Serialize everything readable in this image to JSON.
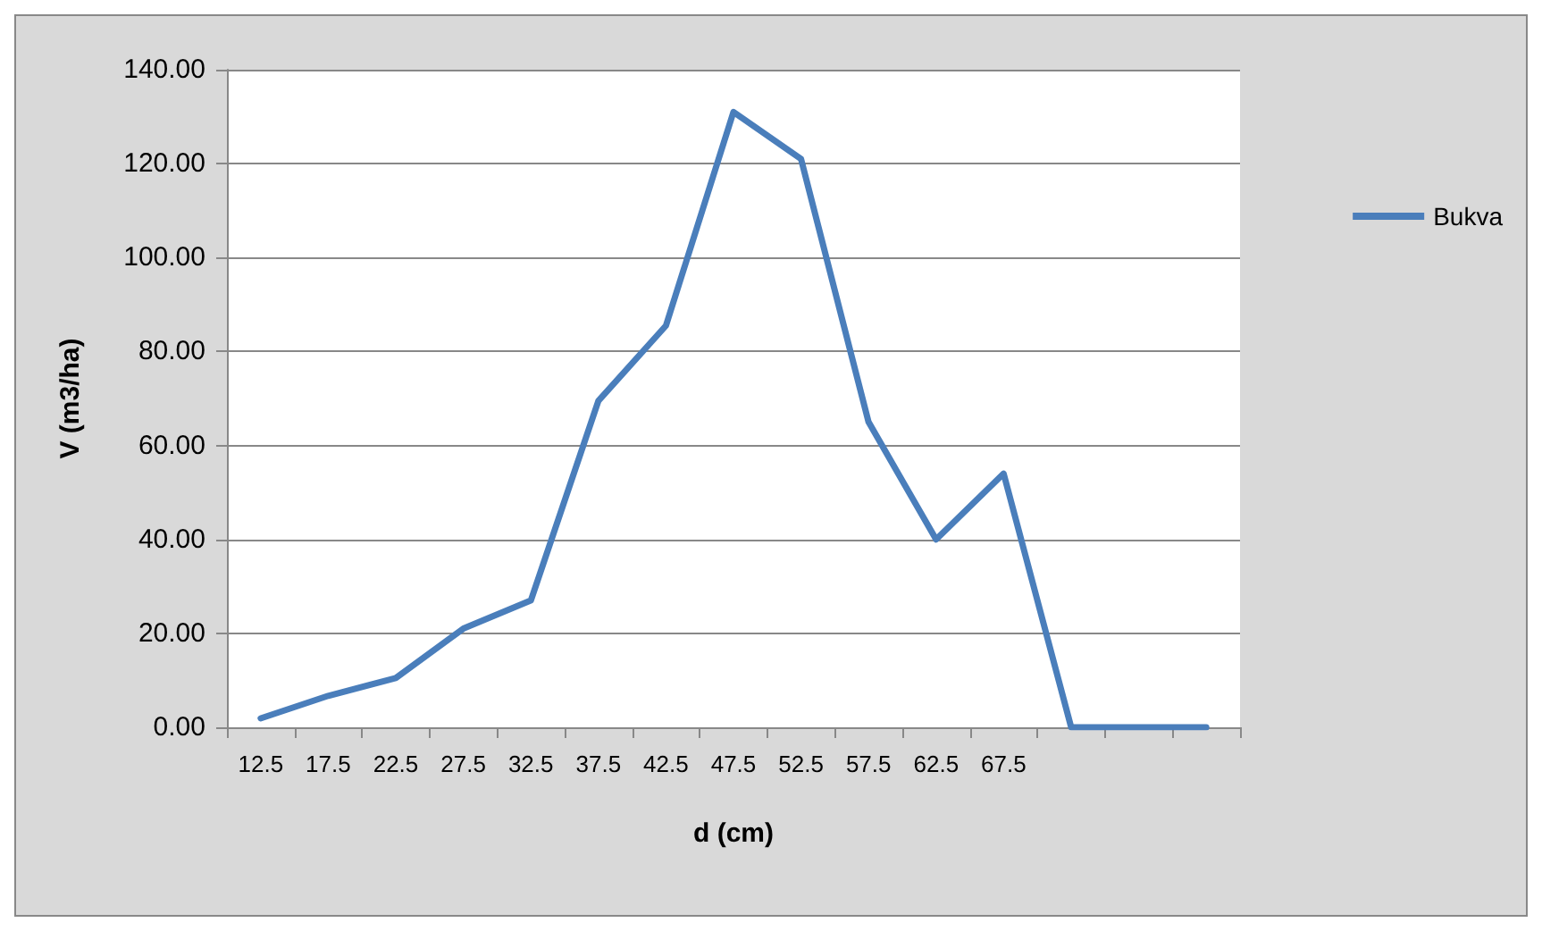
{
  "chart_data": {
    "type": "line",
    "xlabel": "d (cm)",
    "ylabel": "V (m3/ha)",
    "categories": [
      "12.5",
      "17.5",
      "22.5",
      "27.5",
      "32.5",
      "37.5",
      "42.5",
      "47.5",
      "52.5",
      "57.5",
      "62.5",
      "67.5",
      null,
      null,
      null
    ],
    "series": [
      {
        "name": "Bukva",
        "color": "#4a7ebb",
        "values": [
          1.9,
          6.7,
          10.5,
          21,
          27,
          69.5,
          85.5,
          131,
          121,
          65,
          40,
          54,
          0,
          0,
          0
        ]
      }
    ],
    "ylim": [
      0,
      140
    ],
    "yticks": [
      {
        "value": 0,
        "label": "0.00"
      },
      {
        "value": 20,
        "label": "20.00"
      },
      {
        "value": 40,
        "label": "40.00"
      },
      {
        "value": 60,
        "label": "60.00"
      },
      {
        "value": 80,
        "label": "80.00"
      },
      {
        "value": 100,
        "label": "100.00"
      },
      {
        "value": 120,
        "label": "120.00"
      },
      {
        "value": 140,
        "label": "140.00"
      }
    ],
    "grid": "y",
    "legend": "right",
    "marker": "none",
    "line_style": "solid"
  }
}
